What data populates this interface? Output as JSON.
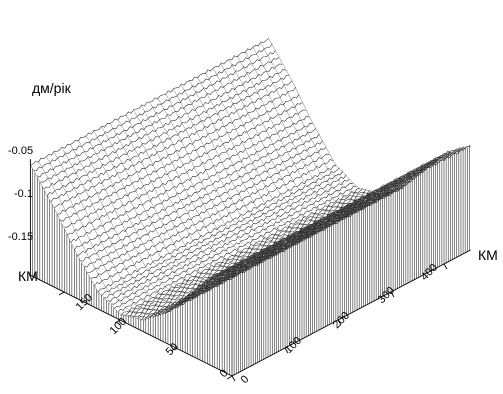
{
  "chart_data": {
    "type": "surface",
    "title": "",
    "zlabel": "дм/рік",
    "xlabel": "КМ",
    "ylabel": "КМ",
    "z_ticks": [
      "-0.05",
      "-0.1",
      "-0.15"
    ],
    "x_ticks": [
      "0",
      "100",
      "200",
      "300",
      "400"
    ],
    "y_ticks": [
      "0",
      "50",
      "100",
      "150"
    ],
    "x_range": [
      0,
      450
    ],
    "y_range": [
      0,
      180
    ],
    "z_range": [
      -0.2,
      0.0
    ],
    "surface": {
      "description_values": {
        "trough_center_y_km": 100,
        "trough_min_dm_per_year": -0.19,
        "edge_value_dm_per_year": 0.0
      },
      "x_profile": {
        "x": [
          0,
          50,
          100,
          150,
          200,
          250,
          300,
          350,
          400,
          450
        ],
        "note_values_min": [
          -0.19,
          -0.19,
          -0.19,
          -0.19,
          -0.19,
          -0.19,
          -0.19,
          -0.19,
          -0.19,
          -0.19
        ]
      },
      "y_profile": {
        "y": [
          0,
          20,
          40,
          60,
          80,
          100,
          120,
          140,
          160,
          180
        ],
        "z": [
          -0.02,
          -0.05,
          -0.1,
          -0.15,
          -0.18,
          -0.19,
          -0.17,
          -0.12,
          -0.06,
          -0.01
        ]
      }
    },
    "grid": false
  }
}
